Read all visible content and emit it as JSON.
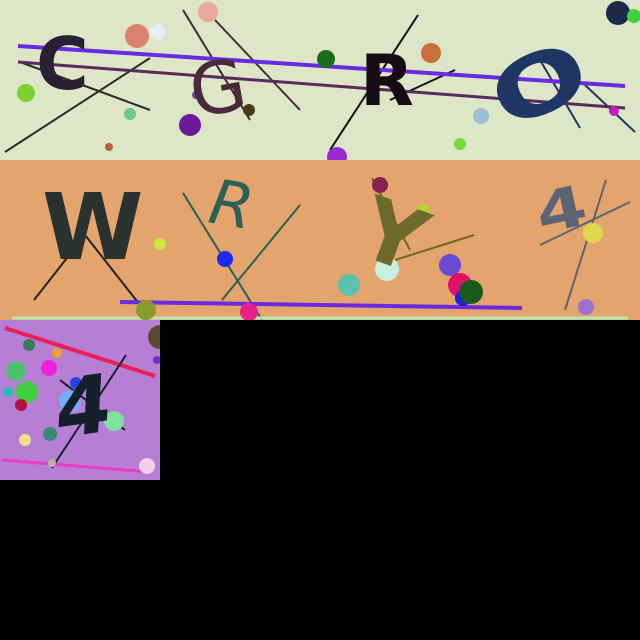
{
  "tiles": [
    {
      "id": "captcha-tile-1",
      "background": "#dde6c7",
      "characters": [
        {
          "text": "C",
          "color": "#2b1f33"
        },
        {
          "text": "G",
          "color": "#4a2a3a"
        },
        {
          "text": "R",
          "color": "#160a14"
        },
        {
          "text": "O",
          "color": "#1f3563"
        }
      ]
    },
    {
      "id": "captcha-tile-2",
      "background": "#e3a46d",
      "characters": [
        {
          "text": "W",
          "color": "#29322e"
        },
        {
          "text": "R",
          "color": "#2b6057"
        },
        {
          "text": "Y",
          "color": "#6e6a2c"
        },
        {
          "text": "4",
          "color": "#5c6473"
        }
      ]
    },
    {
      "id": "captcha-tile-3",
      "background": "#b67fd5",
      "characters": [
        {
          "text": "4",
          "color": "#13202b"
        }
      ]
    }
  ]
}
